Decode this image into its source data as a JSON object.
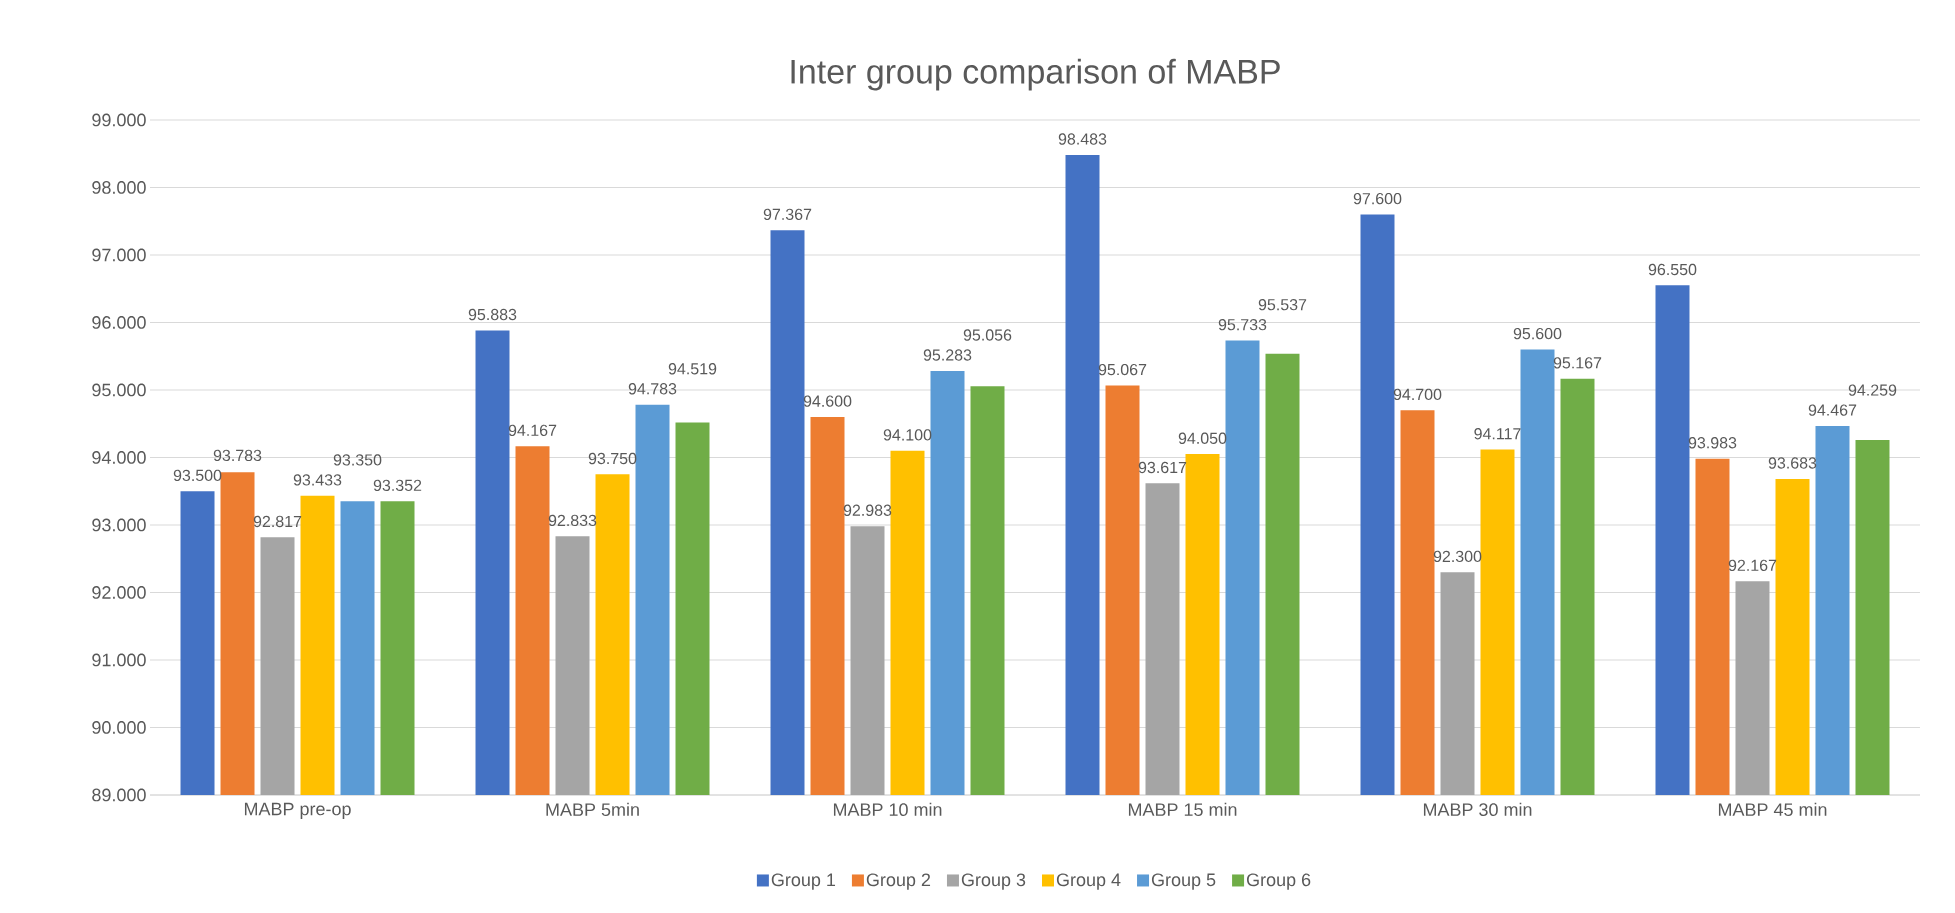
{
  "chart_data": {
    "type": "bar",
    "title": "Inter group comparison of MABP",
    "categories": [
      "MABP pre-op",
      "MABP 5min",
      "MABP 10 min",
      "MABP 15 min",
      "MABP 30 min",
      "MABP 45 min"
    ],
    "series": [
      {
        "name": "Group 1",
        "color": "#4472c4",
        "values": [
          93.5,
          95.883,
          97.367,
          98.483,
          97.6,
          96.55
        ],
        "value_labels": [
          "93.500",
          "95.883",
          "97.367",
          "98.483",
          "97.600",
          "96.550"
        ]
      },
      {
        "name": "Group 2",
        "color": "#ed7d31",
        "values": [
          93.783,
          94.167,
          94.6,
          95.067,
          94.7,
          93.983
        ],
        "value_labels": [
          "93.783",
          "94.167",
          "94.600",
          "95.067",
          "94.700",
          "93.983"
        ]
      },
      {
        "name": "Group 3",
        "color": "#a5a5a5",
        "values": [
          92.817,
          92.833,
          92.983,
          93.617,
          92.3,
          92.167
        ],
        "value_labels": [
          "92.817",
          "92.833",
          "92.983",
          "93.617",
          "92.300",
          "92.167"
        ]
      },
      {
        "name": "Group 4",
        "color": "#ffc000",
        "values": [
          93.433,
          93.75,
          94.1,
          94.05,
          94.117,
          93.683
        ],
        "value_labels": [
          "93.433",
          "93.750",
          "94.100",
          "94.050",
          "94.117",
          "93.683"
        ]
      },
      {
        "name": "Group 5",
        "color": "#5b9bd5",
        "values": [
          93.35,
          94.783,
          95.283,
          95.733,
          95.6,
          94.467
        ],
        "value_labels": [
          "93.350",
          "94.783",
          "95.283",
          "95.733",
          "95.600",
          "94.467"
        ]
      },
      {
        "name": "Group 6",
        "color": "#70ad47",
        "values": [
          93.352,
          94.519,
          95.056,
          95.537,
          95.167,
          94.259
        ],
        "value_labels": [
          "93.352",
          "94.519",
          "95.056",
          "95.537",
          "95.167",
          "94.259"
        ]
      }
    ],
    "ylim": [
      89,
      99
    ],
    "yticks": [
      {
        "value": 89,
        "label": "89.000"
      },
      {
        "value": 90,
        "label": "90.000"
      },
      {
        "value": 91,
        "label": "91.000"
      },
      {
        "value": 92,
        "label": "92.000"
      },
      {
        "value": 93,
        "label": "93.000"
      },
      {
        "value": 94,
        "label": "94.000"
      },
      {
        "value": 95,
        "label": "95.000"
      },
      {
        "value": 96,
        "label": "96.000"
      },
      {
        "value": 97,
        "label": "97.000"
      },
      {
        "value": 98,
        "label": "98.000"
      },
      {
        "value": 99,
        "label": "99.000"
      }
    ],
    "grid": "y",
    "legend": "bottom"
  }
}
